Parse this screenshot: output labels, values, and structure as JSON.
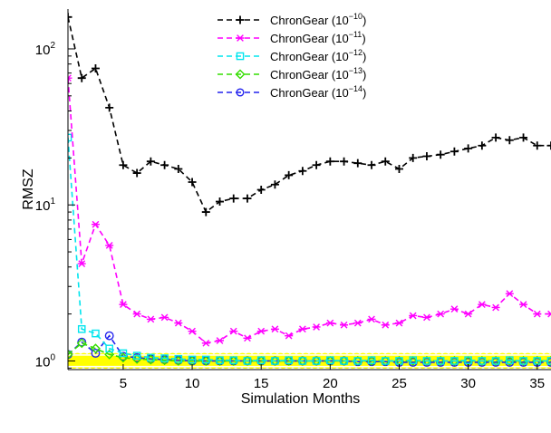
{
  "chart_data": {
    "type": "line",
    "xlabel": "Simulation Months",
    "ylabel": "RMSZ",
    "xlim": [
      1,
      36
    ],
    "ylim": [
      0.88,
      180
    ],
    "yscale": "log",
    "grid": false,
    "legend_position": "top-center",
    "x_ticks": [
      5,
      10,
      15,
      20,
      25,
      30,
      35
    ],
    "x_tick_labels": [
      "5",
      "10",
      "15",
      "20",
      "25",
      "30",
      "35"
    ],
    "y_ticks": [
      1,
      10,
      100
    ],
    "y_tick_labels": [
      {
        "base": "10",
        "exp": "0"
      },
      {
        "base": "10",
        "exp": "1"
      },
      {
        "base": "10",
        "exp": "2"
      }
    ],
    "band": {
      "color": "#ffff00",
      "lower": 0.93,
      "upper": 1.08
    },
    "series": [
      {
        "name": {
          "base": "ChronGear (10",
          "exp": "−10",
          "suffix": ")"
        },
        "color": "#000000",
        "marker": "plus",
        "x": [
          1,
          2,
          3,
          4,
          5,
          6,
          7,
          8,
          9,
          10,
          11,
          12,
          13,
          14,
          15,
          16,
          17,
          18,
          19,
          20,
          21,
          22,
          23,
          24,
          25,
          26,
          27,
          28,
          29,
          30,
          31,
          32,
          33,
          34,
          35,
          36
        ],
        "y": [
          160,
          65,
          75,
          42,
          18,
          16,
          19,
          18,
          17,
          14,
          9,
          10.5,
          11,
          11,
          12.5,
          13.5,
          15.5,
          16.5,
          18,
          19,
          19,
          18.5,
          18,
          19,
          17,
          20,
          20.5,
          21,
          22,
          23,
          24,
          27,
          26,
          27,
          24,
          24
        ]
      },
      {
        "name": {
          "base": "ChronGear (10",
          "exp": "−11",
          "suffix": ")"
        },
        "color": "#ff00ff",
        "marker": "x",
        "x": [
          1,
          2,
          3,
          4,
          5,
          6,
          7,
          8,
          9,
          10,
          11,
          12,
          13,
          14,
          15,
          16,
          17,
          18,
          19,
          20,
          21,
          22,
          23,
          24,
          25,
          26,
          27,
          28,
          29,
          30,
          31,
          32,
          33,
          34,
          35,
          36
        ],
        "y": [
          65,
          4.2,
          7.5,
          5.5,
          2.3,
          2.0,
          1.85,
          1.9,
          1.75,
          1.55,
          1.3,
          1.35,
          1.55,
          1.4,
          1.55,
          1.6,
          1.45,
          1.6,
          1.65,
          1.75,
          1.7,
          1.75,
          1.85,
          1.7,
          1.75,
          1.95,
          1.9,
          2.0,
          2.15,
          2.0,
          2.3,
          2.2,
          2.7,
          2.3,
          2.0,
          2.0
        ]
      },
      {
        "name": {
          "base": "ChronGear (10",
          "exp": "−12",
          "suffix": ")"
        },
        "color": "#00e5ee",
        "marker": "square",
        "x": [
          1,
          2,
          3,
          4,
          5,
          6,
          7,
          8,
          9,
          10,
          11,
          12,
          13,
          14,
          15,
          16,
          17,
          18,
          19,
          20,
          21,
          22,
          23,
          24,
          25,
          26,
          27,
          28,
          29,
          30,
          31,
          32,
          33,
          34,
          35,
          36
        ],
        "y": [
          27,
          1.6,
          1.5,
          1.2,
          1.12,
          1.08,
          1.05,
          1.04,
          1.03,
          1.02,
          1.02,
          1.01,
          1.01,
          1.0,
          1.01,
          1.0,
          1.01,
          1.0,
          1.0,
          1.01,
          1.0,
          1.0,
          1.01,
          1.0,
          1.0,
          1.01,
          1.0,
          1.0,
          1.0,
          1.01,
          1.0,
          1.0,
          1.01,
          1.0,
          1.0,
          1.0
        ]
      },
      {
        "name": {
          "base": "ChronGear (10",
          "exp": "−13",
          "suffix": ")"
        },
        "color": "#33dd00",
        "marker": "diamond",
        "x": [
          1,
          2,
          3,
          4,
          5,
          6,
          7,
          8,
          9,
          10,
          11,
          12,
          13,
          14,
          15,
          16,
          17,
          18,
          19,
          20,
          21,
          22,
          23,
          24,
          25,
          26,
          27,
          28,
          29,
          30,
          31,
          32,
          33,
          34,
          35,
          36
        ],
        "y": [
          1.1,
          1.3,
          1.2,
          1.1,
          1.05,
          1.03,
          1.02,
          1.01,
          1.0,
          1.0,
          1.0,
          1.0,
          1.0,
          1.0,
          1.0,
          1.0,
          1.0,
          1.0,
          1.0,
          1.0,
          1.0,
          1.0,
          1.0,
          1.0,
          1.0,
          1.0,
          1.0,
          1.0,
          1.0,
          1.0,
          1.0,
          1.0,
          1.0,
          1.0,
          1.0,
          1.0
        ]
      },
      {
        "name": {
          "base": "ChronGear (10",
          "exp": "−14",
          "suffix": ")"
        },
        "color": "#2222ee",
        "marker": "circle",
        "x": [
          1,
          2,
          3,
          4,
          5,
          6,
          7,
          8,
          9,
          10,
          11,
          12,
          13,
          14,
          15,
          16,
          17,
          18,
          19,
          20,
          21,
          22,
          23,
          24,
          25,
          26,
          27,
          28,
          29,
          30,
          31,
          32,
          33,
          34,
          35,
          36
        ],
        "y": [
          1.1,
          1.32,
          1.12,
          1.45,
          1.07,
          1.05,
          1.03,
          1.02,
          1.01,
          1.0,
          1.0,
          1.0,
          1.0,
          1.0,
          1.0,
          1.0,
          1.0,
          1.0,
          1.0,
          1.0,
          1.0,
          0.99,
          0.99,
          0.99,
          0.98,
          0.98,
          0.98,
          0.98,
          0.98,
          0.98,
          0.98,
          0.98,
          0.98,
          0.98,
          0.98,
          0.98
        ]
      }
    ]
  }
}
